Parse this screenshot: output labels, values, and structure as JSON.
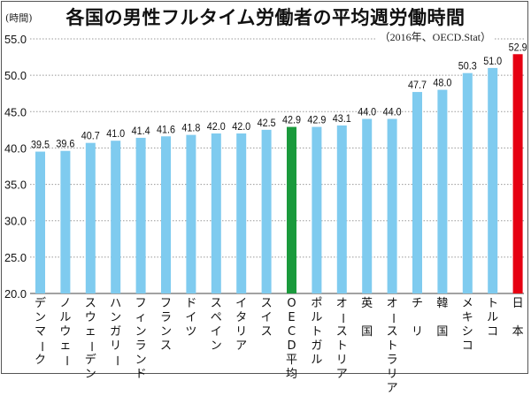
{
  "chart_data": {
    "type": "bar",
    "title": "各国の男性フルタイム労働者の平均週労働時間",
    "subtitle": "（2016年、OECD.Stat）",
    "ylabel": "(時間)",
    "xlabel": "",
    "ylim": [
      20.0,
      55.0
    ],
    "yticks": [
      "20.0",
      "25.0",
      "30.0",
      "35.0",
      "40.0",
      "45.0",
      "50.0",
      "55.0"
    ],
    "ytick_values": [
      20,
      25,
      30,
      35,
      40,
      45,
      50,
      55
    ],
    "grid": true,
    "categories": [
      "デンマーク",
      "ノルウェー",
      "スウェーデン",
      "ハンガリー",
      "フィンランド",
      "フランス",
      "ドイツ",
      "スペイン",
      "イタリア",
      "スイス",
      "OECD平均",
      "ポルトガル",
      "オーストリア",
      "英　国",
      "オーストラリア",
      "チ　リ",
      "韓　国",
      "メキシコ",
      "トルコ",
      "日　本"
    ],
    "values": [
      39.5,
      39.6,
      40.7,
      41.0,
      41.4,
      41.6,
      41.8,
      42.0,
      42.0,
      42.5,
      42.9,
      42.9,
      43.1,
      44.0,
      44.0,
      47.7,
      48.0,
      50.3,
      51.0,
      52.9
    ],
    "value_labels": [
      "39.5",
      "39.6",
      "40.7",
      "41.0",
      "41.4",
      "41.6",
      "41.8",
      "42.0",
      "42.0",
      "42.5",
      "42.9",
      "42.9",
      "43.1",
      "44.0",
      "44.0",
      "47.7",
      "48.0",
      "50.3",
      "51.0",
      "52.9"
    ],
    "bar_colors": {
      "default": "#7fcbef",
      "OECD平均": "#1a9a3c",
      "日　本": "#e60012"
    }
  }
}
